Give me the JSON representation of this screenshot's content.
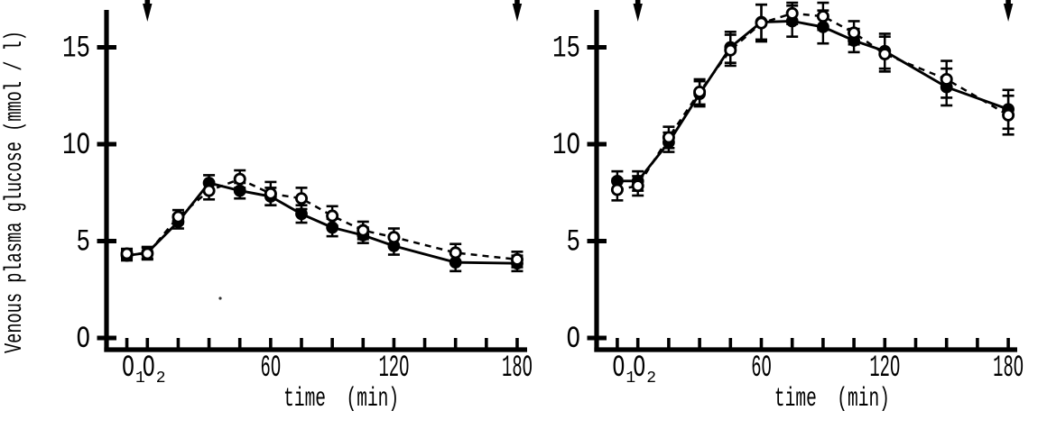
{
  "figure": {
    "background": "#ffffff",
    "ink": "#000000",
    "y_axis_label": "Venous plasma glucose (mmol / l)",
    "x_axis_label": "time (min)"
  },
  "chart_data": [
    {
      "type": "line",
      "panel": "left",
      "xlabel": "time (min)",
      "ylabel": "Venous plasma glucose (mmol / l)",
      "x_unit": "min",
      "ylim": [
        0,
        17.4
      ],
      "y_ticks": [
        0,
        5,
        10,
        15
      ],
      "x_ticks_labeled": [
        {
          "t": -10,
          "label": "0",
          "sub": "1"
        },
        {
          "t": 0,
          "label": "0",
          "sub": "2"
        },
        {
          "t": 60,
          "label": "60"
        },
        {
          "t": 120,
          "label": "120"
        },
        {
          "t": 180,
          "label": "180"
        }
      ],
      "x_minor_tick_every": 15,
      "arrows_at": [
        0,
        180
      ],
      "x": [
        -10,
        0,
        15,
        30,
        45,
        60,
        75,
        90,
        105,
        120,
        150,
        180
      ],
      "series": [
        {
          "name": "filled-circles-solid-line",
          "marker": "filled",
          "line": "solid",
          "values": [
            4.25,
            4.4,
            6.0,
            8.0,
            7.6,
            7.3,
            6.4,
            5.7,
            5.3,
            4.75,
            3.9,
            3.85
          ],
          "errors": [
            0.25,
            0.3,
            0.35,
            0.4,
            0.4,
            0.45,
            0.45,
            0.45,
            0.4,
            0.45,
            0.45,
            0.4
          ]
        },
        {
          "name": "open-circles-dashed-line",
          "marker": "open",
          "line": "dashed",
          "values": [
            4.35,
            4.35,
            6.25,
            7.6,
            8.2,
            7.45,
            7.2,
            6.3,
            5.55,
            5.2,
            4.4,
            4.05
          ],
          "errors": [
            0.25,
            0.3,
            0.35,
            0.45,
            0.45,
            0.6,
            0.55,
            0.5,
            0.45,
            0.45,
            0.45,
            0.4
          ]
        }
      ]
    },
    {
      "type": "line",
      "panel": "right",
      "xlabel": "time (min)",
      "ylabel": "",
      "x_unit": "min",
      "ylim": [
        0,
        17.4
      ],
      "y_ticks": [
        0,
        5,
        10,
        15
      ],
      "x_ticks_labeled": [
        {
          "t": -10,
          "label": "0",
          "sub": "1"
        },
        {
          "t": 0,
          "label": "0",
          "sub": "2"
        },
        {
          "t": 60,
          "label": "60"
        },
        {
          "t": 120,
          "label": "120"
        },
        {
          "t": 180,
          "label": "180"
        }
      ],
      "x_minor_tick_every": 15,
      "arrows_at": [
        0,
        180
      ],
      "x": [
        -10,
        0,
        15,
        30,
        45,
        60,
        75,
        90,
        105,
        120,
        150,
        180
      ],
      "series": [
        {
          "name": "filled-circles-solid-line",
          "marker": "filled",
          "line": "solid",
          "values": [
            8.1,
            8.1,
            10.1,
            12.6,
            15.0,
            16.3,
            16.35,
            16.05,
            15.35,
            14.8,
            12.95,
            11.8
          ],
          "errors": [
            0.5,
            0.5,
            0.5,
            0.65,
            0.8,
            0.9,
            0.8,
            0.85,
            0.6,
            0.9,
            0.95,
            1.0
          ]
        },
        {
          "name": "open-circles-dashed-line",
          "marker": "open",
          "line": "dashed",
          "values": [
            7.65,
            7.85,
            10.35,
            12.7,
            14.85,
            16.25,
            16.75,
            16.6,
            15.75,
            14.65,
            13.35,
            11.5
          ],
          "errors": [
            0.55,
            0.5,
            0.55,
            0.65,
            0.8,
            0.95,
            0.55,
            0.7,
            0.6,
            0.9,
            0.95,
            1.0
          ]
        }
      ]
    }
  ]
}
